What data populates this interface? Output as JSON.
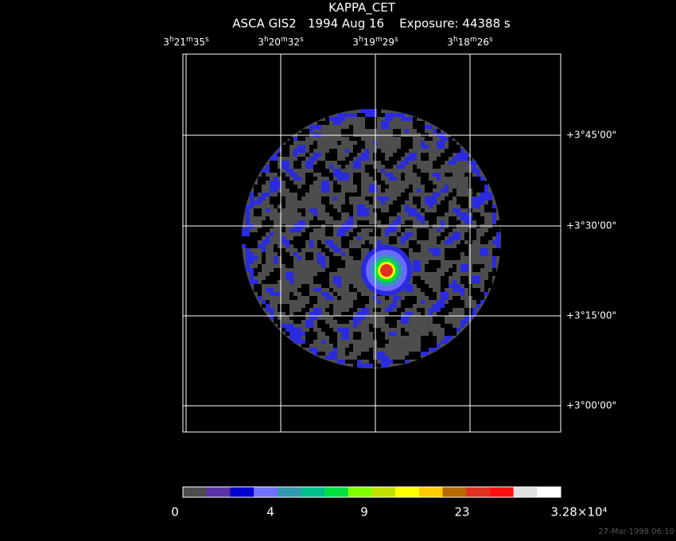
{
  "header": {
    "title": "KAPPA_CET",
    "subtitle": "ASCA GIS2   1994 Aug 16    Exposure: 44388 s"
  },
  "ra_labels": [
    "3h21m35s",
    "3h20m32s",
    "3h19m29s",
    "3h18m26s"
  ],
  "dec_labels": [
    "+3°45'00\"",
    "+3°30'00\"",
    "+3°15'00\"",
    "+3°00'00\""
  ],
  "colorbar": {
    "colors": [
      "#4d4d4d",
      "#5a32a8",
      "#0000d0",
      "#7070ff",
      "#3399b0",
      "#00c090",
      "#00e040",
      "#80ff00",
      "#c0e000",
      "#ffff00",
      "#ffcc00",
      "#b86a00",
      "#e03020",
      "#ff1010",
      "#e0e0e0",
      "#ffffff"
    ],
    "labels": [
      "0",
      "4",
      "9",
      "23",
      "3.28×10⁴"
    ]
  },
  "footer": {
    "timestamp": "27-Mar-1998 06:10"
  }
}
